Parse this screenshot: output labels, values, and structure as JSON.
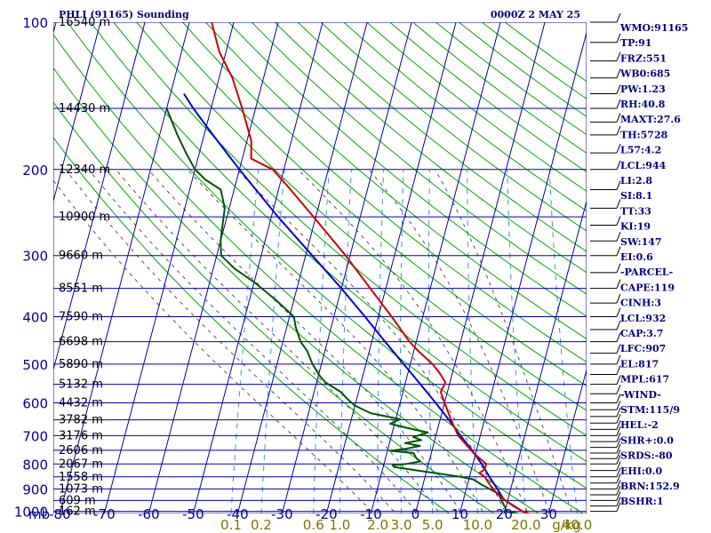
{
  "header": {
    "station": "PHLI (91165) Sounding",
    "valid_time": "0000Z  2 MAY 25"
  },
  "indices": [
    "WMO:91165",
    "TP:91",
    "FRZ:551",
    "WB0:685",
    "PW:1.23",
    "RH:40.8",
    "MAXT:27.6",
    "TH:5728",
    "L57:4.2",
    "LCL:944",
    "LI:2.8",
    "SI:8.1",
    "TT:33",
    "KI:19",
    "SW:147",
    "EI:0.6",
    "-PARCEL-",
    "CAPE:119",
    "CINH:3",
    "LCL:932",
    "CAP:3.7",
    "LFC:907",
    "EL:817",
    "MPL:617",
    "-WIND-",
    "STM:115/9",
    "HEL:-2",
    "SHR+:0.0",
    "SRDS:-80",
    "EHI:0.0",
    "BRN:152.9",
    "BSHR:1"
  ],
  "colors": {
    "grid": "#0000aa",
    "dry_adiabat": "#00aa00",
    "moist_adiabat": "#555555",
    "mixing_ratio": "#3399dd",
    "temperature": "#cc0000",
    "dewpoint": "#005500",
    "parcel": "#0000cc",
    "wind_barb": "#000000",
    "axis_text": "#000099",
    "mixing_text": "#807000"
  },
  "chart_data": {
    "type": "line",
    "title": "PHLI (91165) Sounding",
    "xlabel": "°C",
    "ylabel": "mb",
    "xlim": [
      -80,
      30
    ],
    "ylim": [
      1000,
      100
    ],
    "pressure_levels": [
      100,
      200,
      300,
      400,
      500,
      600,
      700,
      800,
      900,
      1000
    ],
    "temperature_ticks": [
      -80,
      -70,
      -60,
      -50,
      -40,
      -30,
      -20,
      -10,
      0,
      10,
      20,
      30
    ],
    "y_axis_unit_label": "mb",
    "height_labels": [
      {
        "p": 100,
        "text": "16540 m"
      },
      {
        "p": 150,
        "text": "14430 m"
      },
      {
        "p": 200,
        "text": "12340 m"
      },
      {
        "p": 250,
        "text": "10900 m"
      },
      {
        "p": 300,
        "text": "9660 m"
      },
      {
        "p": 350,
        "text": "8551 m"
      },
      {
        "p": 400,
        "text": "7590 m"
      },
      {
        "p": 450,
        "text": "6698 m"
      },
      {
        "p": 500,
        "text": "5890 m"
      },
      {
        "p": 550,
        "text": "5132 m"
      },
      {
        "p": 600,
        "text": "4432 m"
      },
      {
        "p": 650,
        "text": "3782 m"
      },
      {
        "p": 700,
        "text": "3176 m"
      },
      {
        "p": 750,
        "text": "2606 m"
      },
      {
        "p": 800,
        "text": "2067 m"
      },
      {
        "p": 850,
        "text": "1558 m"
      },
      {
        "p": 900,
        "text": "1073 m"
      },
      {
        "p": 950,
        "text": "609 m"
      },
      {
        "p": 1000,
        "text": "162 m"
      }
    ],
    "mixing_ratio_labels": [
      {
        "w": 0.1,
        "text": "0.1"
      },
      {
        "w": 0.2,
        "text": "0.2"
      },
      {
        "w": 0.6,
        "text": "0.6"
      },
      {
        "w": 1.0,
        "text": "1.0"
      },
      {
        "w": 2.0,
        "text": "2.0"
      },
      {
        "w": 3.0,
        "text": "3.0"
      },
      {
        "w": 5.0,
        "text": "5.0"
      },
      {
        "w": 10.0,
        "text": "10.0"
      },
      {
        "w": 20.0,
        "text": "20.0"
      },
      {
        "w": 40.0,
        "text": "40.0"
      }
    ],
    "mixing_ratio_unit": "g/kg",
    "dry_adiabats_K": [
      280,
      290,
      300,
      310,
      320,
      330,
      340,
      350,
      360,
      370,
      380,
      390,
      400,
      410,
      420,
      430,
      440,
      450,
      460,
      470,
      480,
      490,
      500,
      510
    ],
    "moist_adiabats_C": [
      -10,
      -5,
      0,
      5,
      10,
      15,
      20,
      25,
      30,
      35
    ],
    "series": [
      {
        "key": "temperature",
        "points": [
          {
            "p": 1010,
            "t": 25.5
          },
          {
            "p": 1000,
            "t": 24.0
          },
          {
            "p": 980,
            "t": 22.0
          },
          {
            "p": 950,
            "t": 19.5
          },
          {
            "p": 920,
            "t": 17.2
          },
          {
            "p": 900,
            "t": 16.0
          },
          {
            "p": 870,
            "t": 14.4
          },
          {
            "p": 850,
            "t": 13.5
          },
          {
            "p": 835,
            "t": 12.0
          },
          {
            "p": 820,
            "t": 13.0
          },
          {
            "p": 800,
            "t": 13.0
          },
          {
            "p": 760,
            "t": 9.5
          },
          {
            "p": 700,
            "t": 5.0
          },
          {
            "p": 650,
            "t": 2.5
          },
          {
            "p": 600,
            "t": 0.0
          },
          {
            "p": 570,
            "t": -1.5
          },
          {
            "p": 545,
            "t": -1.0
          },
          {
            "p": 520,
            "t": -3.0
          },
          {
            "p": 500,
            "t": -5.0
          },
          {
            "p": 470,
            "t": -9.0
          },
          {
            "p": 450,
            "t": -11.5
          },
          {
            "p": 400,
            "t": -17.0
          },
          {
            "p": 350,
            "t": -23.5
          },
          {
            "p": 300,
            "t": -31.0
          },
          {
            "p": 250,
            "t": -40.5
          },
          {
            "p": 215,
            "t": -48.5
          },
          {
            "p": 200,
            "t": -52.5
          },
          {
            "p": 190,
            "t": -58.0
          },
          {
            "p": 175,
            "t": -59.0
          },
          {
            "p": 150,
            "t": -63.0
          },
          {
            "p": 130,
            "t": -67.0
          },
          {
            "p": 115,
            "t": -71.5
          },
          {
            "p": 100,
            "t": -75.0
          }
        ]
      },
      {
        "key": "dewpoint",
        "points": [
          {
            "p": 1010,
            "t": 23.0
          },
          {
            "p": 1000,
            "t": 20.5
          },
          {
            "p": 960,
            "t": 19.0
          },
          {
            "p": 920,
            "t": 17.5
          },
          {
            "p": 880,
            "t": 13.0
          },
          {
            "p": 860,
            "t": 11.0
          },
          {
            "p": 850,
            "t": 8.0
          },
          {
            "p": 840,
            "t": 4.0
          },
          {
            "p": 830,
            "t": 0.0
          },
          {
            "p": 820,
            "t": -4.0
          },
          {
            "p": 812,
            "t": -7.5
          },
          {
            "p": 805,
            "t": -8.0
          },
          {
            "p": 800,
            "t": -5.0
          },
          {
            "p": 790,
            "t": -2.0
          },
          {
            "p": 780,
            "t": -3.0
          },
          {
            "p": 760,
            "t": -4.0
          },
          {
            "p": 752,
            "t": -9.5
          },
          {
            "p": 745,
            "t": -6.0
          },
          {
            "p": 735,
            "t": -3.0
          },
          {
            "p": 725,
            "t": -6.5
          },
          {
            "p": 715,
            "t": -3.0
          },
          {
            "p": 705,
            "t": -5.0
          },
          {
            "p": 690,
            "t": -2.0
          },
          {
            "p": 675,
            "t": -7.0
          },
          {
            "p": 662,
            "t": -11.0
          },
          {
            "p": 648,
            "t": -9.0
          },
          {
            "p": 630,
            "t": -16.0
          },
          {
            "p": 608,
            "t": -20.0
          },
          {
            "p": 590,
            "t": -22.0
          },
          {
            "p": 570,
            "t": -24.0
          },
          {
            "p": 545,
            "t": -28.0
          },
          {
            "p": 525,
            "t": -30.0
          },
          {
            "p": 500,
            "t": -32.0
          },
          {
            "p": 470,
            "t": -34.0
          },
          {
            "p": 450,
            "t": -36.0
          },
          {
            "p": 420,
            "t": -38.0
          },
          {
            "p": 400,
            "t": -39.0
          },
          {
            "p": 370,
            "t": -44.0
          },
          {
            "p": 340,
            "t": -50.0
          },
          {
            "p": 320,
            "t": -55.0
          },
          {
            "p": 300,
            "t": -59.0
          },
          {
            "p": 280,
            "t": -60.0
          },
          {
            "p": 260,
            "t": -60.5
          },
          {
            "p": 240,
            "t": -61.0
          },
          {
            "p": 220,
            "t": -63.0
          },
          {
            "p": 210,
            "t": -67.0
          },
          {
            "p": 200,
            "t": -70.0
          },
          {
            "p": 185,
            "t": -73.0
          },
          {
            "p": 170,
            "t": -76.0
          },
          {
            "p": 150,
            "t": -80.0
          }
        ]
      },
      {
        "key": "parcel",
        "points": [
          {
            "p": 1000,
            "t": 24.0
          },
          {
            "p": 980,
            "t": 22.2
          },
          {
            "p": 960,
            "t": 20.4
          },
          {
            "p": 944,
            "t": 19.0
          },
          {
            "p": 920,
            "t": 17.9
          },
          {
            "p": 900,
            "t": 17.0
          },
          {
            "p": 850,
            "t": 14.5
          },
          {
            "p": 800,
            "t": 12.0
          },
          {
            "p": 750,
            "t": 9.0
          },
          {
            "p": 700,
            "t": 5.5
          },
          {
            "p": 650,
            "t": 2.0
          },
          {
            "p": 600,
            "t": -2.0
          },
          {
            "p": 550,
            "t": -6.5
          },
          {
            "p": 500,
            "t": -11.5
          },
          {
            "p": 450,
            "t": -17.0
          },
          {
            "p": 400,
            "t": -23.0
          },
          {
            "p": 350,
            "t": -30.0
          },
          {
            "p": 300,
            "t": -38.5
          },
          {
            "p": 250,
            "t": -48.5
          },
          {
            "p": 200,
            "t": -60.0
          },
          {
            "p": 170,
            "t": -68.0
          },
          {
            "p": 150,
            "t": -74.0
          },
          {
            "p": 140,
            "t": -77.0
          }
        ]
      }
    ],
    "wind_barbs": [
      {
        "p": 1000,
        "dir": 250,
        "spd": 5
      },
      {
        "p": 975,
        "dir": 240,
        "spd": 10
      },
      {
        "p": 950,
        "dir": 230,
        "spd": 10
      },
      {
        "p": 925,
        "dir": 240,
        "spd": 10
      },
      {
        "p": 900,
        "dir": 250,
        "spd": 10
      },
      {
        "p": 875,
        "dir": 260,
        "spd": 10
      },
      {
        "p": 850,
        "dir": 260,
        "spd": 10
      },
      {
        "p": 825,
        "dir": 255,
        "spd": 10
      },
      {
        "p": 800,
        "dir": 250,
        "spd": 10
      },
      {
        "p": 780,
        "dir": 245,
        "spd": 10
      },
      {
        "p": 760,
        "dir": 250,
        "spd": 10
      },
      {
        "p": 740,
        "dir": 255,
        "spd": 10
      },
      {
        "p": 720,
        "dir": 260,
        "spd": 10
      },
      {
        "p": 700,
        "dir": 255,
        "spd": 10
      },
      {
        "p": 680,
        "dir": 250,
        "spd": 10
      },
      {
        "p": 660,
        "dir": 250,
        "spd": 10
      },
      {
        "p": 640,
        "dir": 250,
        "spd": 10
      },
      {
        "p": 620,
        "dir": 250,
        "spd": 10
      },
      {
        "p": 600,
        "dir": 250,
        "spd": 10
      },
      {
        "p": 575,
        "dir": 245,
        "spd": 10
      },
      {
        "p": 550,
        "dir": 245,
        "spd": 10
      },
      {
        "p": 525,
        "dir": 240,
        "spd": 10
      },
      {
        "p": 500,
        "dir": 245,
        "spd": 10
      },
      {
        "p": 475,
        "dir": 245,
        "spd": 10
      },
      {
        "p": 450,
        "dir": 240,
        "spd": 10
      },
      {
        "p": 425,
        "dir": 240,
        "spd": 10
      },
      {
        "p": 400,
        "dir": 235,
        "spd": 10
      },
      {
        "p": 375,
        "dir": 240,
        "spd": 10
      },
      {
        "p": 350,
        "dir": 245,
        "spd": 10
      },
      {
        "p": 325,
        "dir": 240,
        "spd": 10
      },
      {
        "p": 300,
        "dir": 235,
        "spd": 10
      },
      {
        "p": 280,
        "dir": 230,
        "spd": 10
      },
      {
        "p": 260,
        "dir": 230,
        "spd": 10
      },
      {
        "p": 240,
        "dir": 225,
        "spd": 10
      },
      {
        "p": 220,
        "dir": 230,
        "spd": 10
      },
      {
        "p": 200,
        "dir": 230,
        "spd": 10
      },
      {
        "p": 185,
        "dir": 225,
        "spd": 10
      },
      {
        "p": 170,
        "dir": 225,
        "spd": 10
      },
      {
        "p": 160,
        "dir": 220,
        "spd": 10
      },
      {
        "p": 150,
        "dir": 215,
        "spd": 10
      },
      {
        "p": 140,
        "dir": 210,
        "spd": 10
      },
      {
        "p": 130,
        "dir": 200,
        "spd": 10
      },
      {
        "p": 120,
        "dir": 190,
        "spd": 10
      },
      {
        "p": 110,
        "dir": 180,
        "spd": 10
      },
      {
        "p": 100,
        "dir": 170,
        "spd": 10
      }
    ]
  }
}
